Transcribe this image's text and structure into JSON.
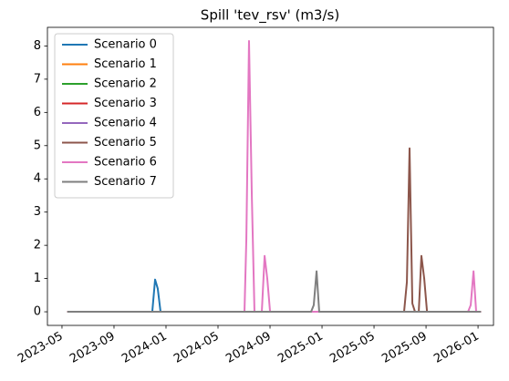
{
  "chart_data": {
    "type": "line",
    "title": "Spill 'tev_rsv' (m3/s)",
    "x": [
      2023.368,
      2023.912,
      2023.93,
      2023.947,
      2023.965,
      2024.503,
      2024.515,
      2024.532,
      2024.55,
      2024.567,
      2024.585,
      2024.614,
      2024.632,
      2024.649,
      2024.667,
      2024.93,
      2024.947,
      2024.965,
      2024.982,
      2025.526,
      2025.544,
      2025.561,
      2025.579,
      2025.596,
      2025.62,
      2025.637,
      2025.655,
      2025.673,
      2025.936,
      2025.953,
      2025.971,
      2025.988,
      2026.018
    ],
    "series": [
      {
        "name": "Scenario 0",
        "color": "#1f77b4",
        "values": [
          0,
          0,
          0.97,
          0.7,
          0,
          0,
          0,
          0,
          0,
          0,
          0,
          0,
          0,
          0,
          0,
          0,
          0,
          0,
          0,
          0,
          0,
          0,
          0,
          0,
          0,
          0,
          0,
          0,
          0,
          0,
          0,
          0,
          0
        ]
      },
      {
        "name": "Scenario 1",
        "color": "#ff7f0e",
        "values": [
          0,
          0,
          0,
          0,
          0,
          0,
          0,
          0,
          0,
          0,
          0,
          0,
          0,
          0,
          0,
          0,
          0,
          0,
          0,
          0,
          0,
          0,
          0,
          0,
          0,
          0,
          0,
          0,
          0,
          0,
          0,
          0,
          0
        ]
      },
      {
        "name": "Scenario 2",
        "color": "#2ca02c",
        "values": [
          0,
          0,
          0,
          0,
          0,
          0,
          0,
          0,
          0,
          0,
          0,
          0,
          0,
          0,
          0,
          0,
          0,
          0,
          0,
          0,
          0,
          0,
          0,
          0,
          0,
          0,
          0,
          0,
          0,
          0,
          0,
          0,
          0
        ]
      },
      {
        "name": "Scenario 3",
        "color": "#d62728",
        "values": [
          0,
          0,
          0,
          0,
          0,
          0,
          0,
          0,
          0,
          0,
          0,
          0,
          0,
          0,
          0,
          0,
          0,
          0,
          0,
          0,
          0,
          0,
          0,
          0,
          0,
          0,
          0,
          0,
          0,
          0,
          0,
          0,
          0
        ]
      },
      {
        "name": "Scenario 4",
        "color": "#9467bd",
        "values": [
          0,
          0,
          0,
          0,
          0,
          0,
          0,
          0,
          0,
          0,
          0,
          0,
          0,
          0,
          0,
          0,
          0,
          0,
          0,
          0,
          0,
          0,
          0,
          0,
          0,
          0,
          0,
          0,
          0,
          0,
          0,
          0,
          0
        ]
      },
      {
        "name": "Scenario 5",
        "color": "#8c564b",
        "values": [
          0,
          0,
          0,
          0,
          0,
          0,
          0,
          0,
          0,
          0,
          0,
          0,
          0,
          0,
          0,
          0,
          0,
          0,
          0,
          0,
          0.9,
          4.92,
          0.25,
          0,
          0,
          1.68,
          1.0,
          0,
          0,
          0,
          0,
          0,
          0
        ]
      },
      {
        "name": "Scenario 6",
        "color": "#e377c2",
        "values": [
          0,
          0,
          0,
          0,
          0,
          0,
          2.2,
          8.15,
          3.5,
          0,
          0,
          0,
          1.68,
          1.0,
          0,
          0,
          0,
          0,
          0,
          0,
          0,
          0,
          0,
          0,
          0,
          0,
          0,
          0,
          0,
          0.2,
          1.22,
          0,
          0
        ]
      },
      {
        "name": "Scenario 7",
        "color": "#7f7f7f",
        "values": [
          0,
          0,
          0,
          0,
          0,
          0,
          0,
          0,
          0,
          0,
          0,
          0,
          0,
          0,
          0,
          0,
          0.2,
          1.22,
          0,
          0,
          0,
          0,
          0,
          0,
          0,
          0,
          0,
          0,
          0,
          0,
          0,
          0,
          0
        ]
      }
    ],
    "xlim": [
      2023.24,
      2026.099
    ],
    "xticks": [
      {
        "value": 2023.3333,
        "label": "2023-05"
      },
      {
        "value": 2023.6667,
        "label": "2023-09"
      },
      {
        "value": 2024.0,
        "label": "2024-01"
      },
      {
        "value": 2024.3333,
        "label": "2024-05"
      },
      {
        "value": 2024.6667,
        "label": "2024-09"
      },
      {
        "value": 2025.0,
        "label": "2025-01"
      },
      {
        "value": 2025.3333,
        "label": "2025-05"
      },
      {
        "value": 2025.6667,
        "label": "2025-09"
      },
      {
        "value": 2026.0,
        "label": "2026-01"
      }
    ],
    "ylim": [
      -0.41,
      8.56
    ],
    "yticks": [
      0,
      1,
      2,
      3,
      4,
      5,
      6,
      7,
      8
    ],
    "grid": false,
    "legend": "upper-left"
  }
}
